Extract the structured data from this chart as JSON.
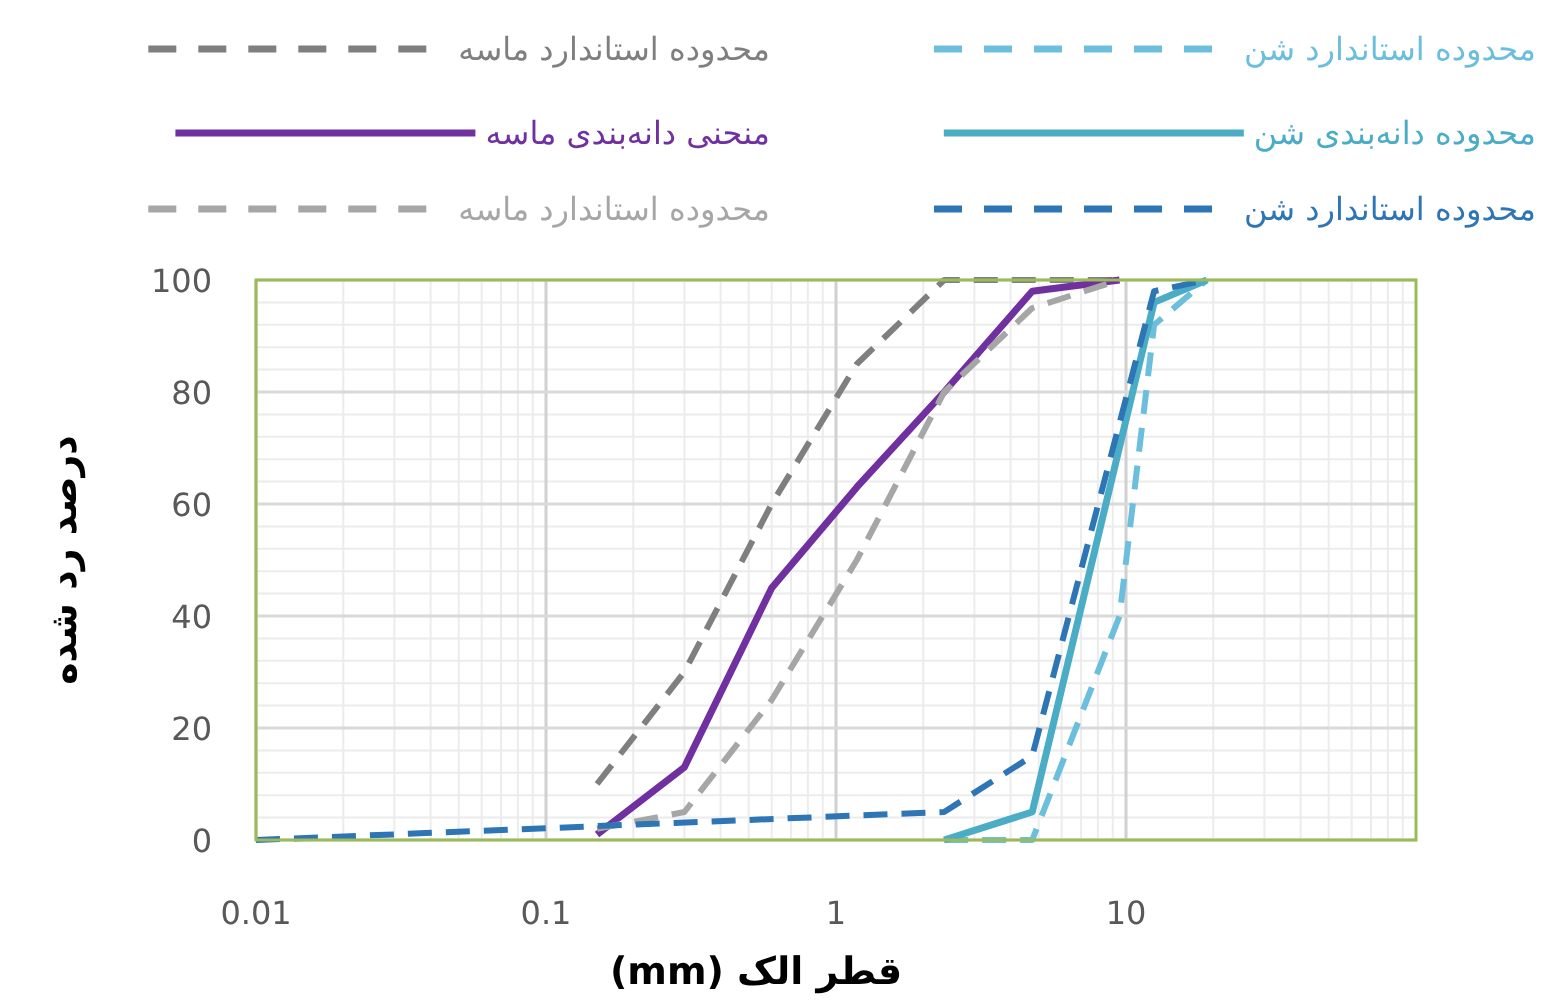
{
  "chart_data": {
    "type": "line",
    "xlabel": "قطر الک (mm)",
    "ylabel": "درصد رد شده",
    "log": "x",
    "xlim": [
      0.01,
      100
    ],
    "ylim": [
      0,
      100
    ],
    "xticks": [
      0.01,
      0.1,
      1,
      10
    ],
    "yticks": [
      0,
      20,
      40,
      60,
      80,
      100
    ],
    "grid": true,
    "legend": "top",
    "series": [
      {
        "name": "محدوده استاندارد ماسه",
        "color": "#7f7f7f",
        "line_style": "dashed",
        "x": [
          0.15,
          0.3,
          0.6,
          1.18,
          2.36,
          4.75,
          9.5
        ],
        "values": [
          10,
          30,
          60,
          85,
          100,
          100,
          100
        ]
      },
      {
        "name": "محدوده استاندارد شن",
        "color": "#6cbfdc",
        "line_style": "dashed",
        "x": [
          2.36,
          4.75,
          9.5,
          12.5,
          19
        ],
        "values": [
          0,
          0,
          40,
          92,
          100
        ]
      },
      {
        "name": "منحنی دانه‌بندی ماسه",
        "color": "#7030a0",
        "line_style": "solid",
        "x": [
          0.15,
          0.3,
          0.6,
          1.18,
          2.36,
          4.75,
          9.5
        ],
        "values": [
          1,
          13,
          45,
          63,
          80,
          98,
          100
        ]
      },
      {
        "name": "محدوده دانه‌بندی شن",
        "color": "#4bacc6",
        "line_style": "solid",
        "x": [
          2.36,
          4.75,
          12.5,
          19
        ],
        "values": [
          0,
          5,
          96,
          100
        ]
      },
      {
        "name": "محدوده استاندارد ماسه",
        "color": "#a6a6a6",
        "line_style": "dashed",
        "x": [
          0.15,
          0.3,
          0.6,
          1.18,
          2.36,
          4.75,
          9.5
        ],
        "values": [
          2,
          5,
          25,
          50,
          80,
          95,
          100
        ]
      },
      {
        "name": "محدوده استاندارد شن",
        "color": "#2e75b6",
        "line_style": "dashed",
        "x": [
          0.01,
          2.36,
          4.75,
          12.5,
          19
        ],
        "values": [
          0,
          5,
          15,
          98,
          100
        ]
      }
    ]
  }
}
